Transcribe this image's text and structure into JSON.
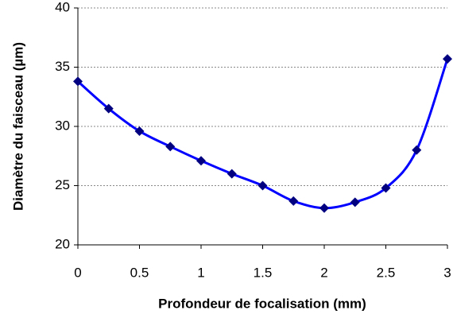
{
  "chart_data": {
    "type": "line",
    "x_label": "Profondeur de focalisation (mm)",
    "y_label": "Diamètre du faisceau (µm)",
    "x": [
      0,
      0.25,
      0.5,
      0.75,
      1,
      1.25,
      1.5,
      1.75,
      2,
      2.25,
      2.5,
      2.75,
      3
    ],
    "series": [
      {
        "name": "Diamètre",
        "color": "#0000ff",
        "marker_color": "#000080",
        "values": [
          33.8,
          31.5,
          29.6,
          28.3,
          27.1,
          26.0,
          25.0,
          23.7,
          23.1,
          23.6,
          24.8,
          28.0,
          35.7
        ]
      }
    ],
    "xlim": [
      0,
      3
    ],
    "xticks": [
      0,
      0.5,
      1,
      1.5,
      2,
      2.5,
      3
    ],
    "ylim": [
      20,
      40
    ],
    "yticks": [
      20,
      25,
      30,
      35,
      40
    ],
    "grid": true,
    "smooth": true
  }
}
